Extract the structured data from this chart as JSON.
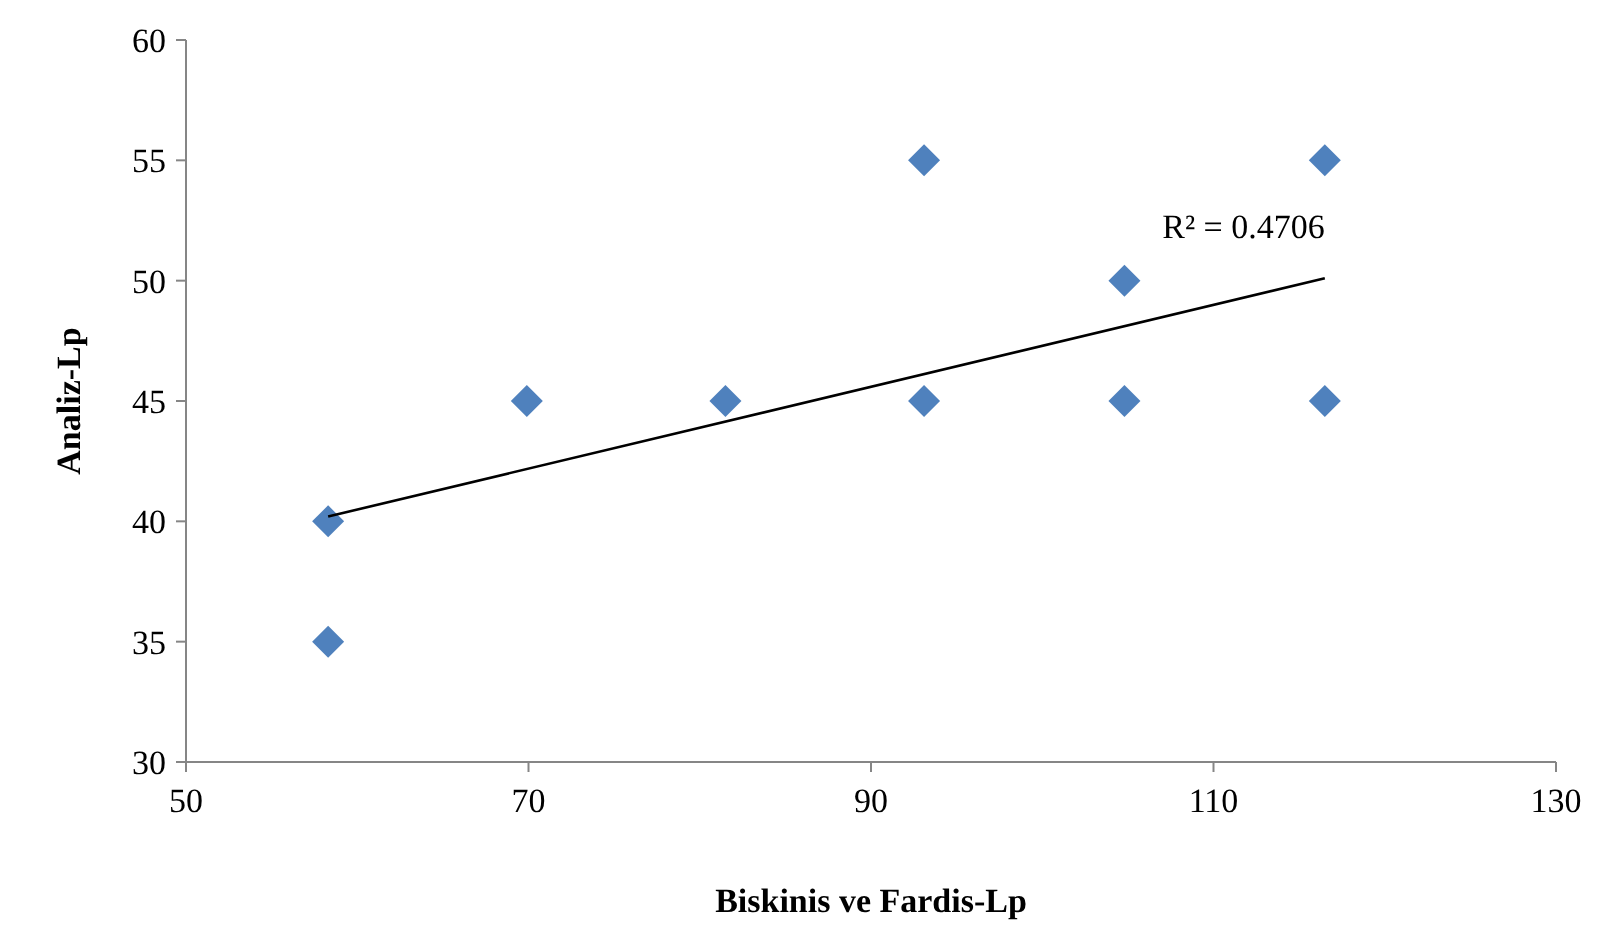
{
  "chart_data": {
    "type": "scatter",
    "xlabel": "Biskinis ve Fardis-Lp",
    "ylabel": "Analiz-Lp",
    "xlim": [
      50,
      130
    ],
    "xticks": [
      50,
      70,
      90,
      110,
      130
    ],
    "ylim": [
      30,
      60
    ],
    "yticks": [
      30,
      35,
      40,
      45,
      50,
      55,
      60
    ],
    "grid": false,
    "marker": "diamond",
    "series": [
      {
        "color": "#4f81bd",
        "x": [
          58.3,
          58.3,
          69.9,
          81.5,
          93.1,
          93.1,
          104.8,
          104.8,
          116.5,
          116.5
        ],
        "values": [
          40,
          35,
          45,
          45,
          55,
          45,
          50,
          45,
          55,
          45
        ]
      },
      {
        "type": "line",
        "color": "#000000",
        "marker": "none",
        "line_style": "solid",
        "x": [
          58.3,
          116.5
        ],
        "values": [
          40.2,
          50.1
        ]
      }
    ],
    "annotations": [
      "R² = 0.4706"
    ]
  }
}
